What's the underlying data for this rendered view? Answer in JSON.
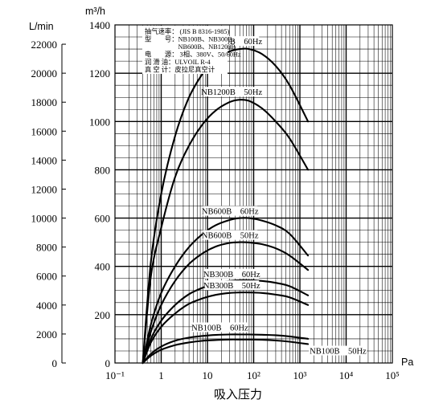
{
  "chart_data": {
    "type": "line",
    "xscale": "log",
    "xlim": [
      0.1,
      100000
    ],
    "ylim": [
      0,
      1400
    ],
    "x_tick_labels": [
      "10⁻¹",
      "1",
      "10",
      "10²",
      "10³",
      "10⁴",
      "10⁵"
    ],
    "x_unit": "Pa",
    "xlabel": "吸入压力",
    "y_left_unit": "L/min",
    "y_left_ticks": [
      0,
      2000,
      4000,
      6000,
      8000,
      10000,
      12000,
      14000,
      16000,
      18000,
      20000,
      22000
    ],
    "y_right_unit": "m³/h",
    "y_right_ticks": [
      0,
      200,
      400,
      600,
      800,
      1000,
      1200,
      1400
    ],
    "legend_lines": [
      "抽气速率： (JIS B 8316-1985)",
      "型　　号：NB100B、NB300B、",
      "　　　　　NB600B、NB1200B",
      "电　　源： 3相、380V、50/60Hz",
      "润 滑 油：ULVOIL R-4",
      "真 空 计：皮拉尼真空计"
    ],
    "series": [
      {
        "name": "NB1200B　60Hz",
        "x": [
          0.4,
          0.6,
          1,
          2,
          4,
          8,
          15,
          30,
          50,
          80,
          150,
          300,
          600,
          1500
        ],
        "y": [
          0,
          420,
          700,
          940,
          1100,
          1200,
          1260,
          1290,
          1300,
          1300,
          1280,
          1230,
          1150,
          1000
        ]
      },
      {
        "name": "NB1200B　50Hz",
        "x": [
          0.4,
          0.6,
          1,
          2,
          4,
          8,
          15,
          30,
          50,
          80,
          150,
          300,
          600,
          1500
        ],
        "y": [
          0,
          360,
          560,
          770,
          900,
          990,
          1045,
          1080,
          1090,
          1085,
          1055,
          1000,
          930,
          800
        ]
      },
      {
        "name": "NB600B　60Hz",
        "x": [
          0.4,
          0.6,
          1,
          2,
          4,
          8,
          15,
          30,
          50,
          80,
          150,
          300,
          600,
          1500
        ],
        "y": [
          0,
          160,
          290,
          400,
          480,
          535,
          570,
          592,
          600,
          600,
          590,
          570,
          535,
          445
        ]
      },
      {
        "name": "NB600B　50Hz",
        "x": [
          0.4,
          0.6,
          1,
          2,
          4,
          8,
          15,
          30,
          50,
          80,
          150,
          300,
          600,
          1500
        ],
        "y": [
          0,
          130,
          240,
          340,
          410,
          455,
          482,
          497,
          500,
          499,
          492,
          475,
          445,
          385
        ]
      },
      {
        "name": "NB300B　60Hz",
        "x": [
          0.4,
          0.6,
          1,
          2,
          4,
          8,
          15,
          30,
          50,
          80,
          150,
          300,
          600,
          1500
        ],
        "y": [
          0,
          100,
          175,
          240,
          285,
          312,
          330,
          340,
          343,
          343,
          340,
          332,
          318,
          280
        ]
      },
      {
        "name": "NB300B　50Hz",
        "x": [
          0.4,
          0.6,
          1,
          2,
          4,
          8,
          15,
          30,
          50,
          80,
          150,
          300,
          600,
          1500
        ],
        "y": [
          0,
          85,
          150,
          205,
          245,
          268,
          282,
          290,
          292,
          292,
          290,
          283,
          272,
          240
        ]
      },
      {
        "name": "NB100B　60Hz",
        "x": [
          0.4,
          0.6,
          1,
          2,
          4,
          8,
          15,
          30,
          50,
          80,
          150,
          300,
          600,
          1500
        ],
        "y": [
          0,
          38,
          68,
          92,
          105,
          112,
          116,
          118,
          118,
          118,
          117,
          115,
          110,
          100
        ]
      },
      {
        "name": "NB100B　50Hz",
        "x": [
          0.4,
          0.6,
          1,
          2,
          4,
          8,
          15,
          30,
          50,
          80,
          150,
          300,
          600,
          1500
        ],
        "y": [
          0,
          30,
          55,
          74,
          85,
          92,
          95,
          97,
          97,
          97,
          96,
          93,
          88,
          78
        ]
      }
    ],
    "grid": true,
    "legend": "top-left"
  }
}
